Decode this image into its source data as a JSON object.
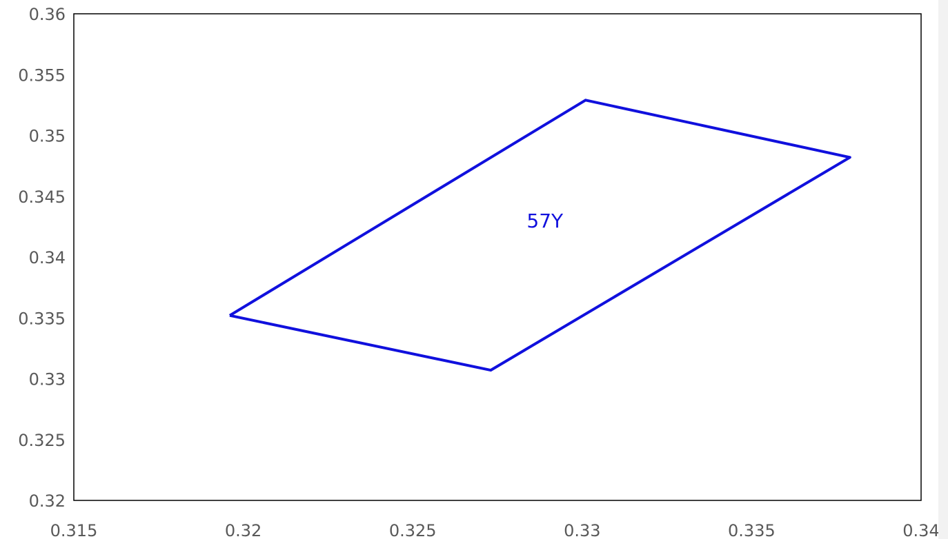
{
  "chart_data": {
    "type": "line",
    "title": "",
    "xlabel": "",
    "ylabel": "",
    "xlim": [
      0.315,
      0.34
    ],
    "ylim": [
      0.32,
      0.36
    ],
    "xticks": [
      0.315,
      0.32,
      0.325,
      0.33,
      0.335,
      0.34
    ],
    "yticks": [
      0.32,
      0.325,
      0.33,
      0.335,
      0.34,
      0.345,
      0.35,
      0.355,
      0.36
    ],
    "xtick_labels": [
      "0.315",
      "0.32",
      "0.325",
      "0.33",
      "0.335",
      "0.34"
    ],
    "ytick_labels": [
      "0.32",
      "0.325",
      "0.33",
      "0.335",
      "0.34",
      "0.345",
      "0.35",
      "0.355",
      "0.36"
    ],
    "grid": false,
    "legend": "none",
    "series": [
      {
        "color": "#1010dd",
        "closed": true,
        "x": [
          0.3196,
          0.3301,
          0.3379,
          0.3273,
          0.3196
        ],
        "y": [
          0.3352,
          0.3529,
          0.3482,
          0.3307,
          0.3352
        ]
      }
    ],
    "annotations": [
      {
        "text": "57Y",
        "x": 0.3289,
        "y": 0.343,
        "color": "#1010dd"
      }
    ]
  }
}
